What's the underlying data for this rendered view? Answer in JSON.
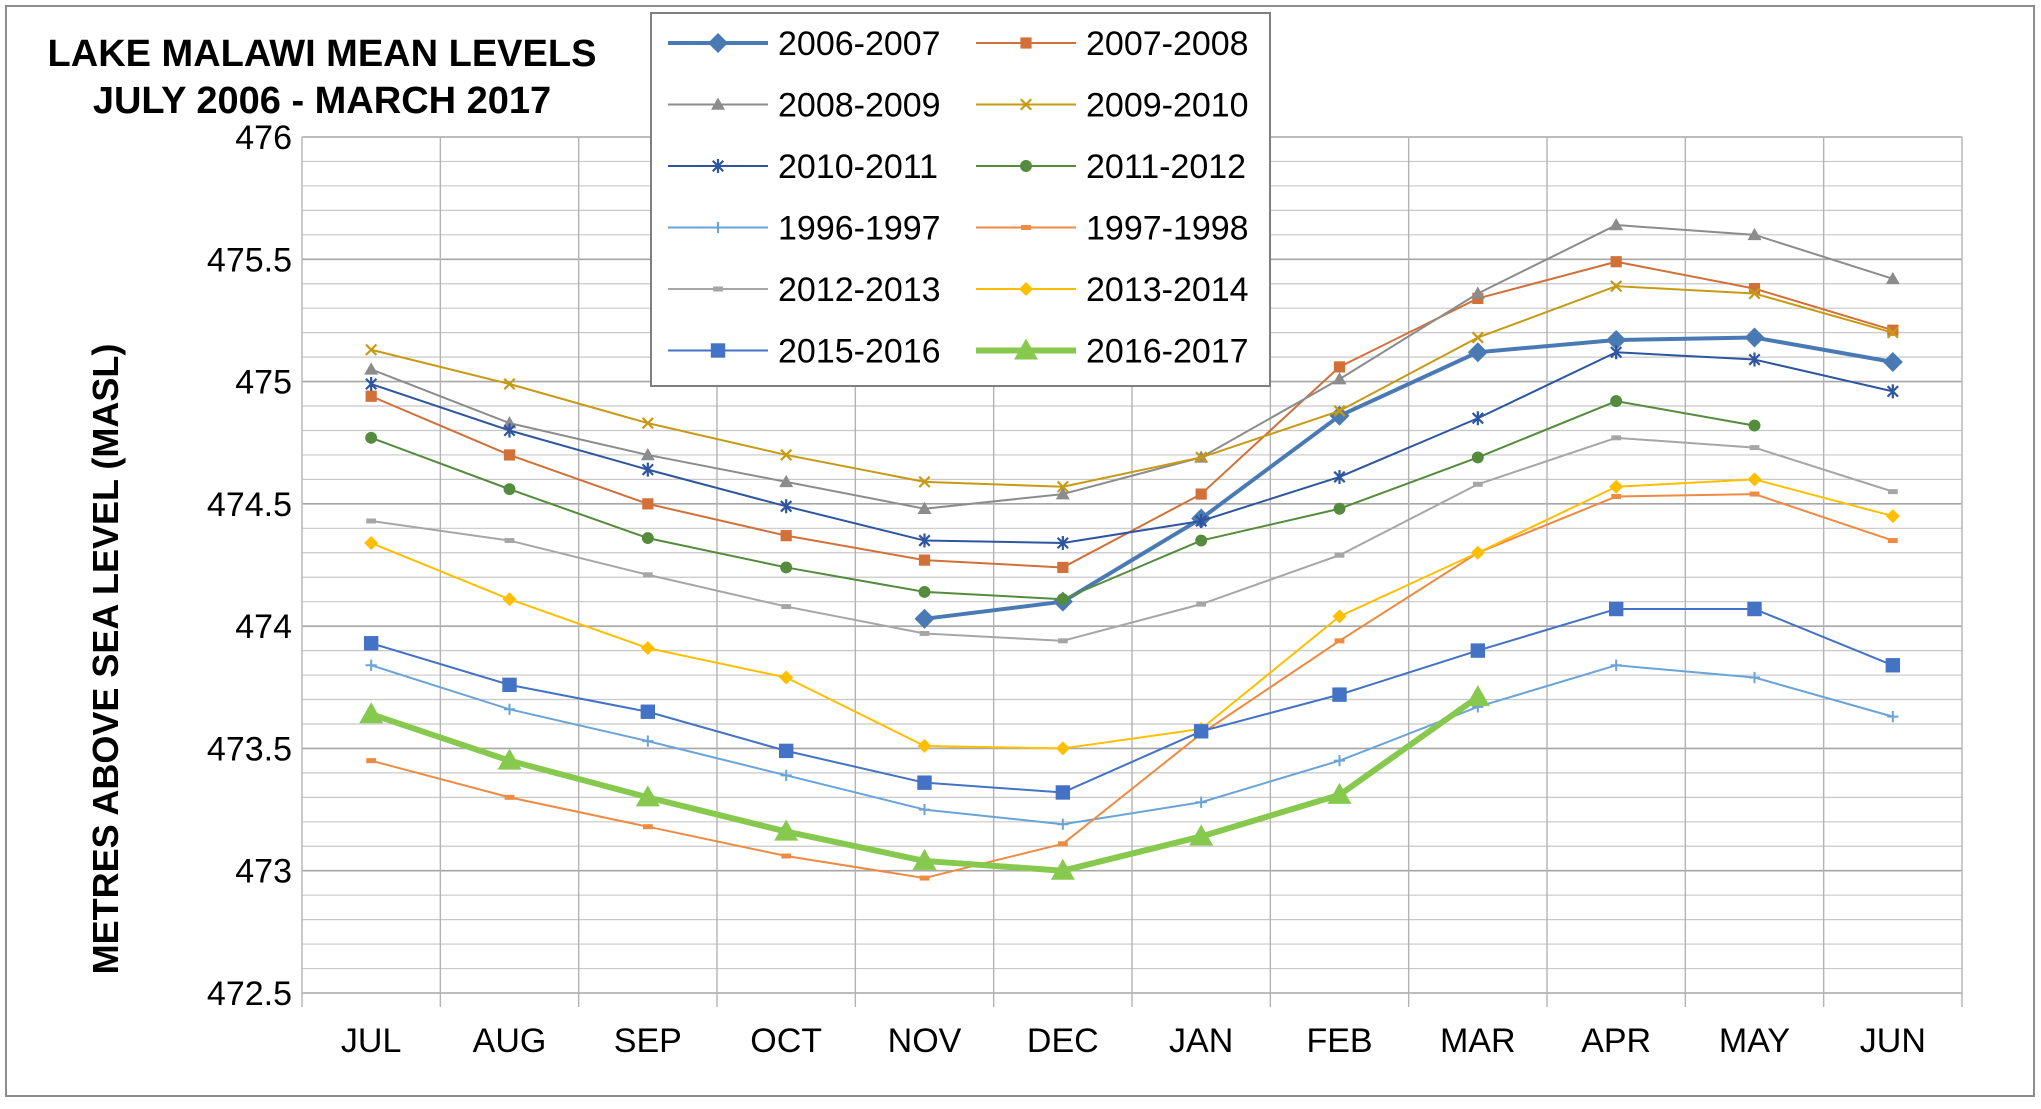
{
  "chart_data": {
    "type": "line",
    "title": [
      "LAKE MALAWI MEAN LEVELS",
      "JULY 2006 - MARCH 2017"
    ],
    "xlabel": "",
    "ylabel": "METRES ABOVE SEA LEVEL (MASL)",
    "ylim": [
      472.5,
      476
    ],
    "yticks": [
      "472.5",
      "473",
      "473.5",
      "474",
      "474.5",
      "475",
      "475.5",
      "476"
    ],
    "yminor_step": 0.1,
    "grid": true,
    "legend_position": "top-center",
    "categories": [
      "JUL",
      "AUG",
      "SEP",
      "OCT",
      "NOV",
      "DEC",
      "JAN",
      "FEB",
      "MAR",
      "APR",
      "MAY",
      "JUN"
    ],
    "series": [
      {
        "name": "2006-2007",
        "color": "#4a7ab3",
        "marker": "diamond",
        "width": 4,
        "values": [
          null,
          null,
          null,
          null,
          474.03,
          474.1,
          474.44,
          474.86,
          475.12,
          475.17,
          475.18,
          475.08
        ]
      },
      {
        "name": "2007-2008",
        "color": "#d2703a",
        "marker": "square",
        "width": 2,
        "values": [
          474.94,
          474.7,
          474.5,
          474.37,
          474.27,
          474.24,
          474.54,
          475.06,
          475.34,
          475.49,
          475.38,
          475.21
        ]
      },
      {
        "name": "2008-2009",
        "color": "#8c8c8c",
        "marker": "triangle",
        "width": 2,
        "values": [
          475.05,
          474.83,
          474.7,
          474.59,
          474.48,
          474.54,
          474.69,
          475.01,
          475.36,
          475.64,
          475.6,
          475.42
        ]
      },
      {
        "name": "2009-2010",
        "color": "#c79a14",
        "marker": "x",
        "width": 2,
        "values": [
          475.13,
          474.99,
          474.83,
          474.7,
          474.59,
          474.57,
          474.69,
          474.88,
          475.18,
          475.39,
          475.36,
          475.2
        ]
      },
      {
        "name": "2010-2011",
        "color": "#2e559f",
        "marker": "asterisk",
        "width": 2,
        "values": [
          474.99,
          474.8,
          474.64,
          474.49,
          474.35,
          474.34,
          474.43,
          474.61,
          474.85,
          475.12,
          475.09,
          474.96
        ]
      },
      {
        "name": "2011-2012",
        "color": "#548b3c",
        "marker": "circle",
        "width": 2,
        "values": [
          474.77,
          474.56,
          474.36,
          474.24,
          474.14,
          474.11,
          474.35,
          474.48,
          474.69,
          474.92,
          474.82,
          null
        ]
      },
      {
        "name": "1996-1997",
        "color": "#6aa3d6",
        "marker": "plus",
        "width": 2,
        "values": [
          473.84,
          473.66,
          473.53,
          473.39,
          473.25,
          473.19,
          473.28,
          473.45,
          473.67,
          473.84,
          473.79,
          473.63
        ]
      },
      {
        "name": "1997-1998",
        "color": "#ee8a42",
        "marker": "dash",
        "width": 2,
        "values": [
          473.45,
          473.3,
          473.18,
          473.06,
          472.97,
          473.11,
          473.56,
          473.94,
          474.3,
          474.53,
          474.54,
          474.35
        ]
      },
      {
        "name": "2012-2013",
        "color": "#a6a6a6",
        "marker": "dash",
        "width": 2,
        "values": [
          474.43,
          474.35,
          474.21,
          474.08,
          473.97,
          473.94,
          474.09,
          474.29,
          474.58,
          474.77,
          474.73,
          474.55
        ]
      },
      {
        "name": "2013-2014",
        "color": "#ffbf00",
        "marker": "diamond",
        "width": 2,
        "values": [
          474.34,
          474.11,
          473.91,
          473.79,
          473.51,
          473.5,
          473.58,
          474.04,
          474.3,
          474.57,
          474.6,
          474.45
        ]
      },
      {
        "name": "2015-2016",
        "color": "#4472c4",
        "marker": "square",
        "width": 2,
        "values": [
          473.93,
          473.76,
          473.65,
          473.49,
          473.36,
          473.32,
          473.57,
          473.72,
          473.9,
          474.07,
          474.07,
          473.84
        ]
      },
      {
        "name": "2016-2017",
        "color": "#86c94e",
        "marker": "triangle",
        "width": 6,
        "values": [
          473.64,
          473.45,
          473.3,
          473.16,
          473.04,
          473.0,
          473.14,
          473.31,
          473.71,
          null,
          null,
          null
        ]
      }
    ]
  }
}
